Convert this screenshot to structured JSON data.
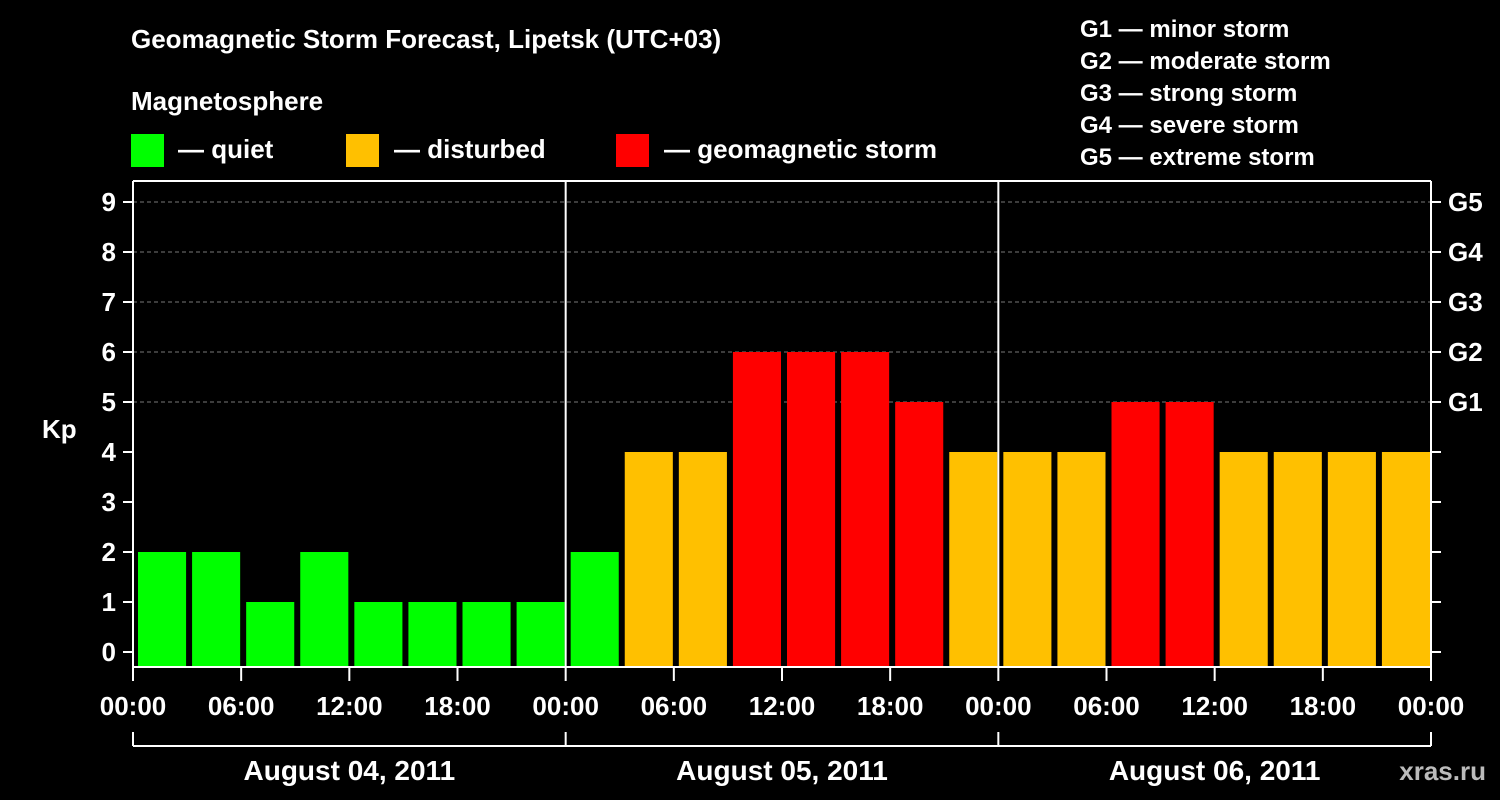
{
  "title": "Geomagnetic Storm Forecast, Lipetsk (UTC+03)",
  "legend": {
    "heading": "Magnetosphere",
    "items": [
      {
        "label": "— quiet",
        "color": "#00ff00"
      },
      {
        "label": "— disturbed",
        "color": "#ffc000"
      },
      {
        "label": "— geomagnetic storm",
        "color": "#ff0000"
      }
    ]
  },
  "g_scale": [
    "G1 — minor storm",
    "G2 — moderate storm",
    "G3 — strong storm",
    "G4 — severe storm",
    "G5 — extreme storm"
  ],
  "watermark": "xras.ru",
  "chart_data": {
    "type": "bar",
    "ylabel": "Kp",
    "xlabel": "",
    "ylim": [
      0,
      9
    ],
    "yticks": [
      0,
      1,
      2,
      3,
      4,
      5,
      6,
      7,
      8,
      9
    ],
    "right_ticks": [
      {
        "value": 5,
        "label": "G1"
      },
      {
        "value": 6,
        "label": "G2"
      },
      {
        "value": 7,
        "label": "G3"
      },
      {
        "value": 8,
        "label": "G4"
      },
      {
        "value": 9,
        "label": "G5"
      }
    ],
    "grid": true,
    "x_tick_labels": [
      "00:00",
      "06:00",
      "12:00",
      "18:00",
      "00:00",
      "06:00",
      "12:00",
      "18:00",
      "00:00",
      "06:00",
      "12:00",
      "18:00",
      "00:00"
    ],
    "days": [
      "August 04, 2011",
      "August 05, 2011",
      "August 06, 2011"
    ],
    "values": [
      2,
      2,
      1,
      2,
      1,
      1,
      1,
      1,
      2,
      4,
      4,
      6,
      6,
      6,
      5,
      4,
      4,
      4,
      5,
      5,
      4,
      4,
      4,
      4
    ],
    "colors": {
      "quiet": "#00ff00",
      "disturbed": "#ffc000",
      "storm": "#ff0000"
    }
  }
}
